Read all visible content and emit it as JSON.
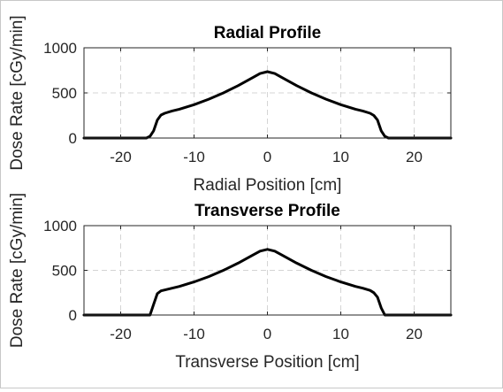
{
  "chart_data": [
    {
      "type": "line",
      "title": "Radial Profile",
      "xlabel": "Radial Position [cm]",
      "ylabel": "Dose Rate [cGy/min]",
      "xlim": [
        -25,
        25
      ],
      "ylim": [
        0,
        1000
      ],
      "xticks": [
        -20,
        -10,
        0,
        10,
        20
      ],
      "yticks": [
        0,
        500,
        1000
      ],
      "grid": true,
      "legend": "none",
      "series": [
        {
          "color": "#000000",
          "x": [
            -25,
            -16.5,
            -16,
            -15.5,
            -15,
            -14.5,
            -14,
            -13,
            -12,
            -10,
            -8,
            -6,
            -4,
            -2,
            -1,
            0,
            1,
            2,
            4,
            6,
            8,
            10,
            12,
            13,
            14,
            14.5,
            15,
            15.5,
            16,
            16.5,
            25
          ],
          "y": [
            0,
            0,
            20,
            80,
            200,
            255,
            275,
            300,
            320,
            370,
            430,
            500,
            580,
            670,
            715,
            735,
            715,
            670,
            580,
            500,
            430,
            370,
            320,
            300,
            275,
            250,
            200,
            80,
            20,
            0,
            0
          ]
        }
      ]
    },
    {
      "type": "line",
      "title": "Transverse Profile",
      "xlabel": "Transverse Position [cm]",
      "ylabel": "Dose Rate [cGy/min]",
      "xlim": [
        -25,
        25
      ],
      "ylim": [
        0,
        1000
      ],
      "xticks": [
        -20,
        -10,
        0,
        10,
        20
      ],
      "yticks": [
        0,
        500,
        1000
      ],
      "grid": true,
      "legend": "none",
      "series": [
        {
          "color": "#000000",
          "x": [
            -25,
            -16,
            -15.5,
            -15,
            -14.5,
            -14,
            -13,
            -12,
            -10,
            -8,
            -6,
            -4,
            -2,
            -1,
            0,
            1,
            2,
            4,
            6,
            8,
            10,
            12,
            13,
            14,
            14.5,
            15,
            15.5,
            16,
            25
          ],
          "y": [
            0,
            0,
            120,
            240,
            270,
            280,
            300,
            320,
            370,
            430,
            500,
            580,
            670,
            715,
            735,
            715,
            670,
            580,
            500,
            430,
            370,
            320,
            300,
            275,
            250,
            200,
            80,
            0,
            0
          ]
        }
      ]
    }
  ]
}
